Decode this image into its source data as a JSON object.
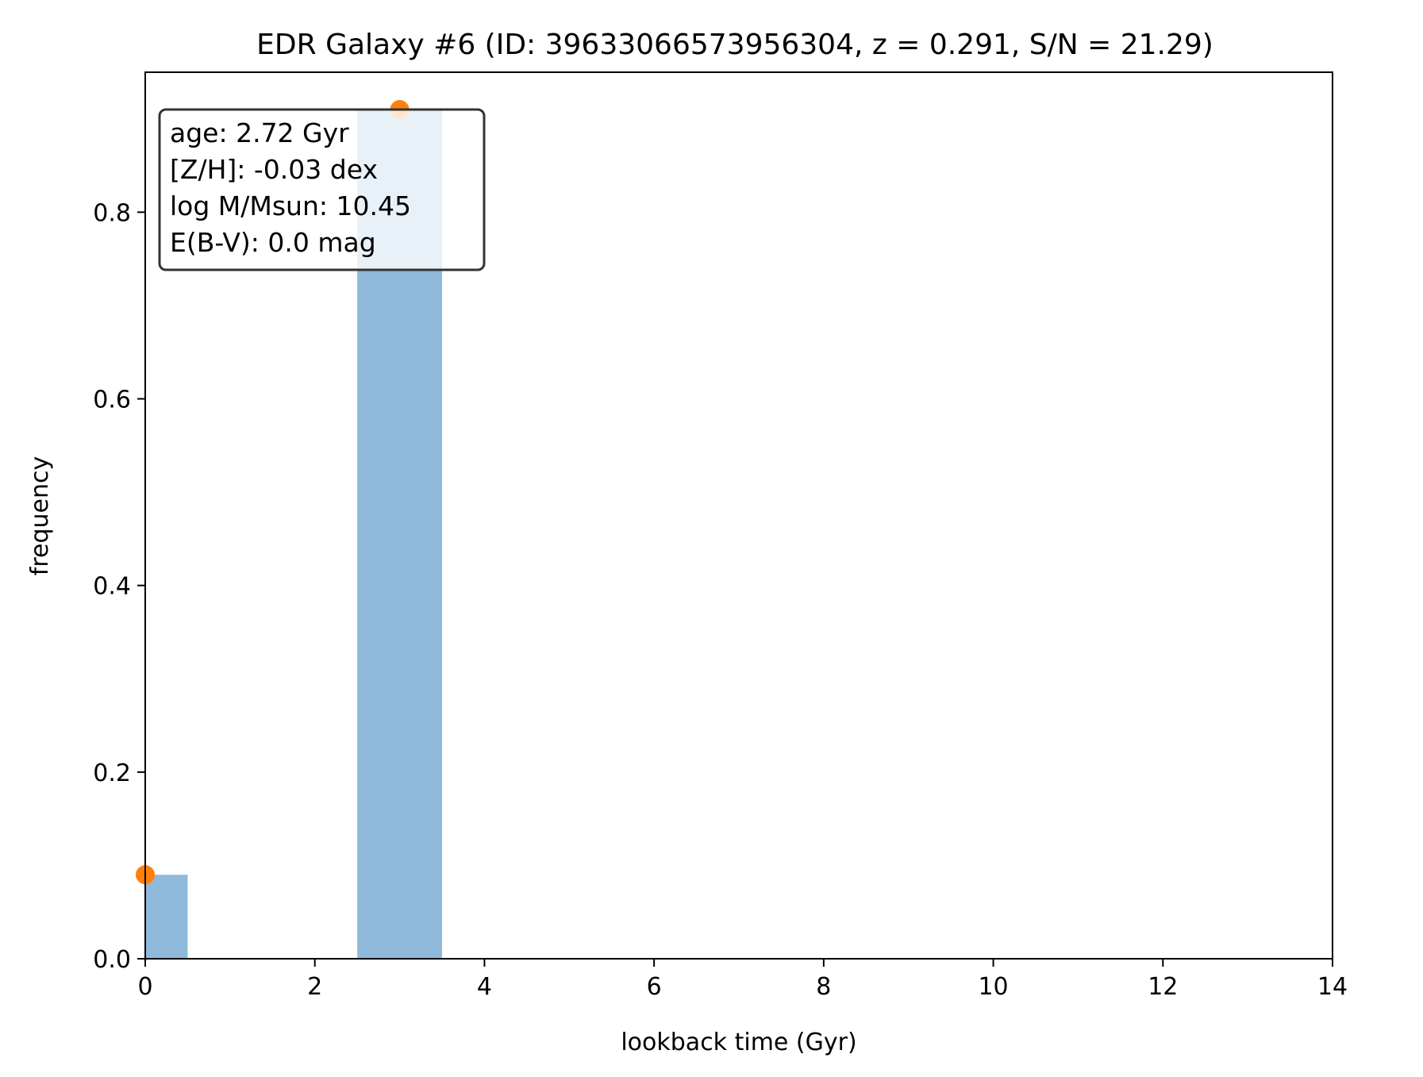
{
  "chart_data": {
    "type": "bar",
    "title": "EDR Galaxy #6 (ID: 39633066573956304, z = 0.291, S/N = 21.29)",
    "xlabel": "lookback time (Gyr)",
    "ylabel": "frequency",
    "xlim": [
      0,
      14
    ],
    "ylim": [
      0,
      0.95
    ],
    "xticks": [
      "0",
      "2",
      "4",
      "6",
      "8",
      "10",
      "12",
      "14"
    ],
    "yticks": [
      "0.0",
      "0.2",
      "0.4",
      "0.6",
      "0.8"
    ],
    "bars": [
      {
        "x0": 0.0,
        "x1": 0.5,
        "value": 0.09
      },
      {
        "x0": 2.5,
        "x1": 3.5,
        "value": 0.91
      }
    ],
    "points": [
      {
        "x": 0.0,
        "y": 0.09
      },
      {
        "x": 3.0,
        "y": 0.91
      }
    ],
    "info_box": [
      "age: 2.72 Gyr",
      "[Z/H]: -0.03 dex",
      "log M/Msun: 10.45",
      "E(B-V): 0.0 mag"
    ],
    "colors": {
      "bar": "#8fbadb",
      "point": "#ff7f0e"
    },
    "grid": false,
    "info_box_placement": "top-left"
  }
}
